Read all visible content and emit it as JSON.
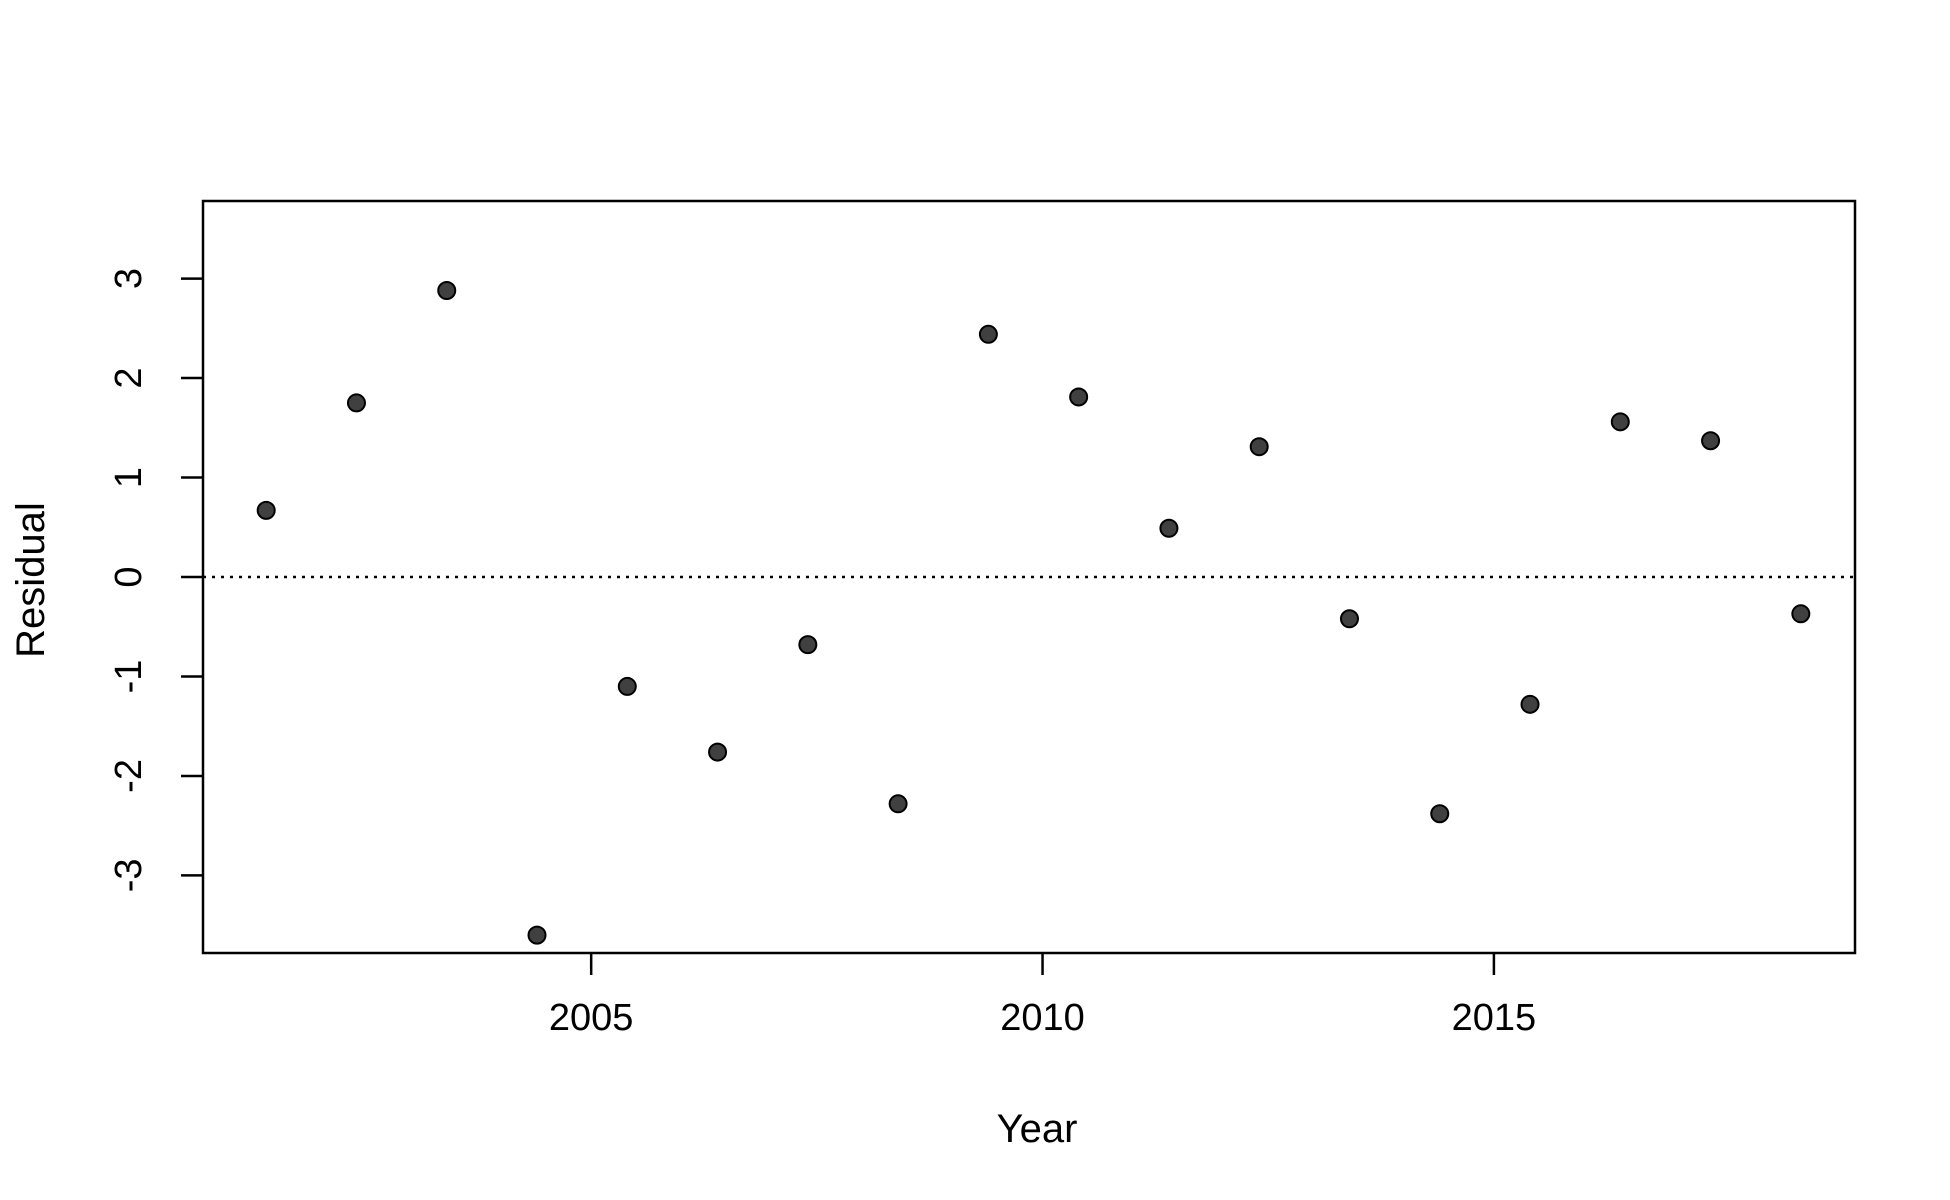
{
  "chart_data": {
    "type": "scatter",
    "title": "",
    "xlabel": "Year",
    "ylabel": "Residual",
    "xlim": [
      2000.7,
      2019.0
    ],
    "ylim": [
      -3.78,
      3.78
    ],
    "x_ticks": [
      2005,
      2010,
      2015
    ],
    "x_tick_labels": [
      "2005",
      "2010",
      "2015"
    ],
    "y_ticks": [
      -3,
      -2,
      -1,
      0,
      1,
      2,
      3
    ],
    "y_tick_labels": [
      "-3",
      "-2",
      "-1",
      "0",
      "1",
      "2",
      "3"
    ],
    "reference_line": {
      "y": 0,
      "style": "dotted"
    },
    "grid": false,
    "point_color": "#404040",
    "x": [
      2001.4,
      2002.4,
      2003.4,
      2004.4,
      2005.4,
      2006.4,
      2007.4,
      2008.4,
      2009.4,
      2010.4,
      2011.4,
      2012.4,
      2013.4,
      2014.4,
      2015.4,
      2016.4,
      2017.4,
      2018.4
    ],
    "y": [
      0.67,
      1.75,
      2.88,
      -3.6,
      -1.1,
      -1.76,
      -0.68,
      -2.28,
      2.44,
      1.81,
      0.49,
      1.31,
      -0.42,
      -2.38,
      -1.28,
      1.56,
      1.37,
      -0.37
    ]
  }
}
